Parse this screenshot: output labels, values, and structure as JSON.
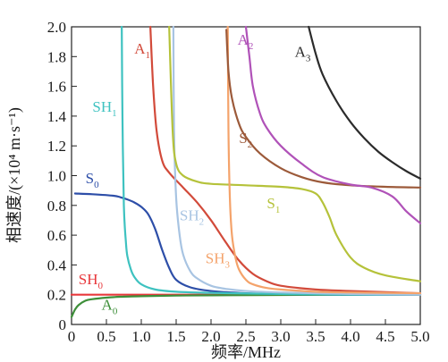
{
  "chart_data": {
    "type": "line",
    "xlabel": "频率/MHz",
    "ylabel": "相速度/(×10⁴ m·s⁻¹)",
    "xlim": [
      0,
      5.0
    ],
    "ylim": [
      0,
      2.0
    ],
    "x_ticks": [
      "0",
      "0.5",
      "1.0",
      "1.5",
      "2.0",
      "2.5",
      "3.0",
      "3.5",
      "4.0",
      "4.5",
      "5.0"
    ],
    "y_ticks": [
      "0",
      "0.2",
      "0.4",
      "0.6",
      "0.8",
      "1.0",
      "1.2",
      "1.4",
      "1.6",
      "1.8",
      "2.0"
    ],
    "grid": false,
    "legend": "none",
    "series": [
      {
        "name": "SH0",
        "color": "#e8383c",
        "label_pos": [
          0.1,
          0.27
        ],
        "x": [
          0,
          0.5,
          1,
          2,
          3,
          4,
          5
        ],
        "y": [
          0.2,
          0.2,
          0.2,
          0.2,
          0.2,
          0.2,
          0.2
        ]
      },
      {
        "name": "A0",
        "color": "#3e8f3a",
        "label_pos": [
          0.43,
          0.1
        ],
        "x": [
          0,
          0.05,
          0.1,
          0.2,
          0.3,
          0.5,
          0.7,
          1.0,
          1.5,
          2.0,
          3.0,
          4.0,
          5.0
        ],
        "y": [
          0.05,
          0.1,
          0.13,
          0.16,
          0.17,
          0.18,
          0.186,
          0.19,
          0.194,
          0.196,
          0.198,
          0.2,
          0.2
        ]
      },
      {
        "name": "S0",
        "color": "#2d4ea8",
        "label_pos": [
          0.2,
          0.95
        ],
        "x": [
          0.05,
          0.3,
          0.6,
          0.7,
          0.8,
          0.9,
          1.0,
          1.1,
          1.2,
          1.3,
          1.4,
          1.5,
          1.7,
          2.0,
          2.5,
          3.0,
          4.0,
          5.0
        ],
        "y": [
          0.88,
          0.875,
          0.865,
          0.855,
          0.84,
          0.82,
          0.79,
          0.74,
          0.64,
          0.5,
          0.38,
          0.3,
          0.25,
          0.225,
          0.21,
          0.205,
          0.2,
          0.2
        ]
      },
      {
        "name": "SH1",
        "color": "#3ec2c0",
        "label_pos": [
          0.3,
          1.43
        ],
        "x": [
          0.72,
          0.73,
          0.75,
          0.78,
          0.8,
          0.85,
          0.9,
          1.0,
          1.2,
          1.5,
          2.0,
          3.0,
          4.0,
          5.0
        ],
        "y": [
          2.0,
          1.4,
          0.8,
          0.55,
          0.46,
          0.37,
          0.32,
          0.27,
          0.235,
          0.22,
          0.212,
          0.205,
          0.2,
          0.2
        ]
      },
      {
        "name": "A1",
        "color": "#d24a3a",
        "label_pos": [
          0.9,
          1.82
        ],
        "x": [
          1.13,
          1.17,
          1.22,
          1.3,
          1.4,
          1.6,
          1.8,
          2.0,
          2.2,
          2.4,
          2.6,
          2.8,
          3.0,
          3.5,
          4.0,
          5.0
        ],
        "y": [
          2.0,
          1.6,
          1.3,
          1.1,
          1.02,
          0.92,
          0.82,
          0.7,
          0.56,
          0.43,
          0.34,
          0.29,
          0.26,
          0.235,
          0.225,
          0.21
        ]
      },
      {
        "name": "SH2",
        "color": "#a8c4e2",
        "label_pos": [
          1.55,
          0.7
        ],
        "x": [
          1.46,
          1.47,
          1.5,
          1.55,
          1.6,
          1.7,
          1.8,
          2.0,
          2.2,
          2.5,
          3.0,
          4.0,
          5.0
        ],
        "y": [
          2.0,
          1.3,
          0.85,
          0.6,
          0.47,
          0.36,
          0.31,
          0.26,
          0.24,
          0.225,
          0.215,
          0.205,
          0.2
        ]
      },
      {
        "name": "S1",
        "color": "#b5c23a",
        "label_pos": [
          2.8,
          0.78
        ],
        "x": [
          1.4,
          1.45,
          1.5,
          1.6,
          1.8,
          2.0,
          2.5,
          3.0,
          3.3,
          3.5,
          3.6,
          3.7,
          3.8,
          4.0,
          4.2,
          4.5,
          5.0
        ],
        "y": [
          2.0,
          1.3,
          1.08,
          1.0,
          0.96,
          0.945,
          0.935,
          0.925,
          0.91,
          0.88,
          0.82,
          0.72,
          0.6,
          0.45,
          0.38,
          0.33,
          0.29
        ]
      },
      {
        "name": "SH3",
        "color": "#f4a36b",
        "label_pos": [
          1.92,
          0.41
        ],
        "x": [
          2.24,
          2.25,
          2.27,
          2.3,
          2.35,
          2.4,
          2.5,
          2.6,
          2.8,
          3.0,
          3.5,
          4.0,
          5.0
        ],
        "y": [
          2.0,
          1.3,
          0.85,
          0.6,
          0.45,
          0.37,
          0.3,
          0.27,
          0.245,
          0.235,
          0.22,
          0.215,
          0.21
        ]
      },
      {
        "name": "S2",
        "color": "#9c5a3a",
        "label_pos": [
          2.4,
          1.22
        ],
        "x": [
          2.22,
          2.25,
          2.3,
          2.4,
          2.5,
          2.7,
          3.0,
          3.3,
          3.6,
          4.0,
          4.5,
          5.0
        ],
        "y": [
          1.98,
          1.7,
          1.52,
          1.35,
          1.26,
          1.15,
          1.05,
          0.99,
          0.955,
          0.935,
          0.925,
          0.92
        ]
      },
      {
        "name": "A2",
        "color": "#b052b8",
        "label_pos": [
          2.38,
          1.88
        ],
        "x": [
          2.5,
          2.55,
          2.6,
          2.7,
          2.8,
          3.0,
          3.3,
          3.6,
          4.0,
          4.3,
          4.6,
          4.8,
          5.0
        ],
        "y": [
          2.0,
          1.8,
          1.6,
          1.42,
          1.32,
          1.2,
          1.08,
          0.99,
          0.94,
          0.92,
          0.86,
          0.76,
          0.68
        ]
      },
      {
        "name": "A3",
        "color": "#2b2b2b",
        "label_pos": [
          3.2,
          1.8
        ],
        "x": [
          3.4,
          3.5,
          3.6,
          3.8,
          4.0,
          4.2,
          4.4,
          4.6,
          4.8,
          5.0
        ],
        "y": [
          2.0,
          1.82,
          1.68,
          1.5,
          1.36,
          1.25,
          1.16,
          1.09,
          1.03,
          0.98
        ]
      }
    ]
  }
}
